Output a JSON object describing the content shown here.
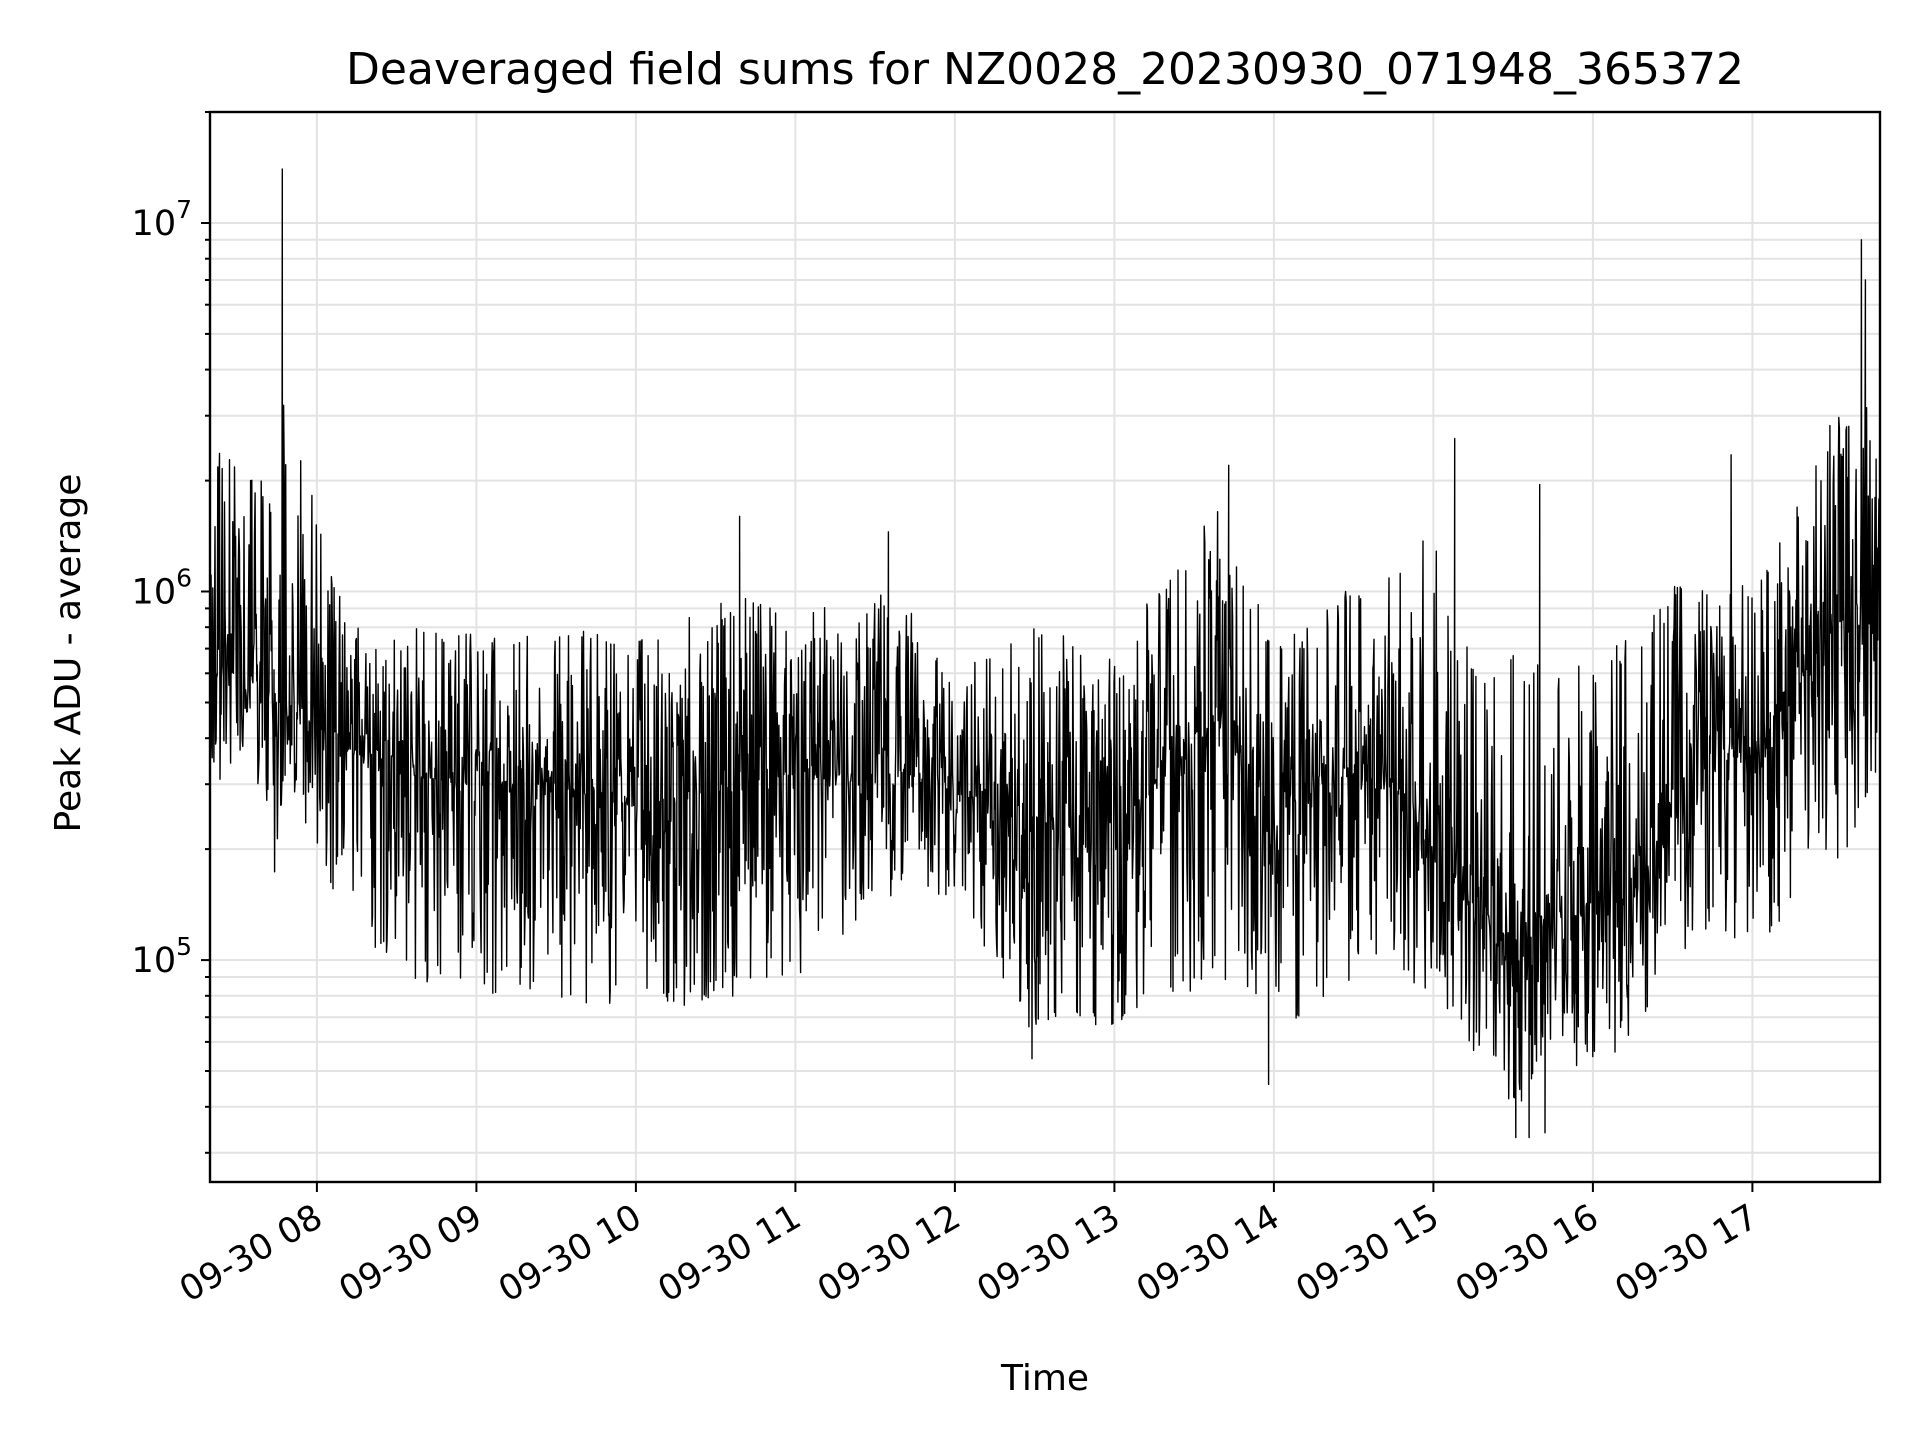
{
  "chart_data": {
    "type": "line",
    "title": "Deaveraged field sums for NZ0028_20230930_071948_365372",
    "xlabel": "Time",
    "ylabel": "Peak ADU - average",
    "x_axis": {
      "type": "datetime",
      "range": [
        "2023-09-30T07:19:48",
        "2023-09-30T17:48:00"
      ],
      "tick_labels": [
        "09-30 08",
        "09-30 09",
        "09-30 10",
        "09-30 11",
        "09-30 12",
        "09-30 13",
        "09-30 14",
        "09-30 15",
        "09-30 16",
        "09-30 17"
      ],
      "tick_times": [
        "2023-09-30T08:00:00",
        "2023-09-30T09:00:00",
        "2023-09-30T10:00:00",
        "2023-09-30T11:00:00",
        "2023-09-30T12:00:00",
        "2023-09-30T13:00:00",
        "2023-09-30T14:00:00",
        "2023-09-30T15:00:00",
        "2023-09-30T16:00:00",
        "2023-09-30T17:00:00"
      ],
      "tick_label_rotation_deg": 30
    },
    "y_axis": {
      "scale": "log",
      "range": [
        25000,
        20000000
      ],
      "major_ticks": [
        100000,
        1000000,
        10000000
      ],
      "major_tick_labels": [
        {
          "base": "10",
          "exp": "5"
        },
        {
          "base": "10",
          "exp": "6"
        },
        {
          "base": "10",
          "exp": "7"
        }
      ]
    },
    "grid": true,
    "legend": "none",
    "line_color": "#000000",
    "series": [
      {
        "values_are": "approximate local envelope of the dense noisy trace",
        "envelope": [
          {
            "t": "2023-09-30T07:20:00",
            "low": 290000,
            "mid": 600000,
            "high": 2500000
          },
          {
            "t": "2023-09-30T07:35:00",
            "low": 350000,
            "mid": 600000,
            "high": 2200000
          },
          {
            "t": "2023-09-30T07:44:00",
            "low": 160000,
            "mid": 500000,
            "high": 1800000
          },
          {
            "t": "2023-09-30T07:50:00",
            "low": 300000,
            "mid": 500000,
            "high": 3000000
          },
          {
            "t": "2023-09-30T08:10:00",
            "low": 120000,
            "mid": 380000,
            "high": 900000
          },
          {
            "t": "2023-09-30T08:30:00",
            "low": 90000,
            "mid": 320000,
            "high": 800000
          },
          {
            "t": "2023-09-30T09:00:00",
            "low": 80000,
            "mid": 300000,
            "high": 800000
          },
          {
            "t": "2023-09-30T09:30:00",
            "low": 80000,
            "mid": 300000,
            "high": 800000
          },
          {
            "t": "2023-09-30T10:00:00",
            "low": 70000,
            "mid": 260000,
            "high": 750000
          },
          {
            "t": "2023-09-30T10:40:00",
            "low": 80000,
            "mid": 300000,
            "high": 1000000
          },
          {
            "t": "2023-09-30T11:00:00",
            "low": 90000,
            "mid": 320000,
            "high": 900000
          },
          {
            "t": "2023-09-30T11:40:00",
            "low": 150000,
            "mid": 320000,
            "high": 1000000
          },
          {
            "t": "2023-09-30T12:00:00",
            "low": 150000,
            "mid": 300000,
            "high": 700000
          },
          {
            "t": "2023-09-30T12:30:00",
            "low": 60000,
            "mid": 220000,
            "high": 800000
          },
          {
            "t": "2023-09-30T13:00:00",
            "low": 65000,
            "mid": 230000,
            "high": 700000
          },
          {
            "t": "2023-09-30T13:40:00",
            "low": 90000,
            "mid": 450000,
            "high": 1800000
          },
          {
            "t": "2023-09-30T14:00:00",
            "low": 60000,
            "mid": 250000,
            "high": 700000
          },
          {
            "t": "2023-09-30T14:40:00",
            "low": 100000,
            "mid": 350000,
            "high": 1200000
          },
          {
            "t": "2023-09-30T15:00:00",
            "low": 80000,
            "mid": 200000,
            "high": 1500000
          },
          {
            "t": "2023-09-30T15:30:00",
            "low": 40000,
            "mid": 110000,
            "high": 700000
          },
          {
            "t": "2023-09-30T15:50:00",
            "low": 50000,
            "mid": 140000,
            "high": 600000
          },
          {
            "t": "2023-09-30T16:20:00",
            "low": 60000,
            "mid": 150000,
            "high": 800000
          },
          {
            "t": "2023-09-30T16:40:00",
            "low": 120000,
            "mid": 420000,
            "high": 1400000
          },
          {
            "t": "2023-09-30T17:00:00",
            "low": 110000,
            "mid": 350000,
            "high": 1000000
          },
          {
            "t": "2023-09-30T17:30:00",
            "low": 150000,
            "mid": 800000,
            "high": 3000000
          },
          {
            "t": "2023-09-30T17:48:00",
            "low": 350000,
            "mid": 1000000,
            "high": 3500000
          }
        ],
        "spikes": [
          {
            "t": "2023-09-30T07:47:00",
            "value": 14000000
          },
          {
            "t": "2023-09-30T07:47:30",
            "value": 3200000
          },
          {
            "t": "2023-09-30T10:39:00",
            "value": 1600000
          },
          {
            "t": "2023-09-30T11:35:00",
            "value": 1450000
          },
          {
            "t": "2023-09-30T13:43:00",
            "value": 2200000
          },
          {
            "t": "2023-09-30T15:08:00",
            "value": 2600000
          },
          {
            "t": "2023-09-30T15:40:00",
            "value": 1950000
          },
          {
            "t": "2023-09-30T16:52:00",
            "value": 2350000
          },
          {
            "t": "2023-09-30T17:41:00",
            "value": 9000000
          },
          {
            "t": "2023-09-30T17:42:30",
            "value": 7000000
          },
          {
            "t": "2023-09-30T15:31:00",
            "value": 33000
          },
          {
            "t": "2023-09-30T15:36:00",
            "value": 33000
          },
          {
            "t": "2023-09-30T15:42:00",
            "value": 34000
          },
          {
            "t": "2023-09-30T13:58:00",
            "value": 46000
          },
          {
            "t": "2023-09-30T12:29:00",
            "value": 54000
          }
        ]
      }
    ]
  }
}
